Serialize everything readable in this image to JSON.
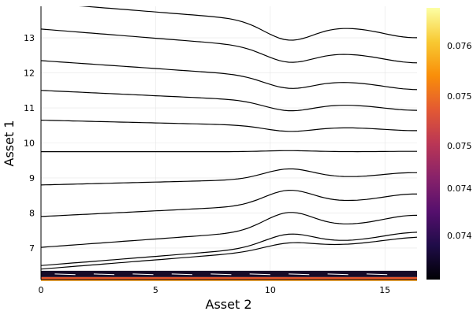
{
  "chart_data": {
    "type": "contour",
    "xlabel": "Asset 2",
    "ylabel": "Asset 1",
    "xlim": [
      0,
      16.4
    ],
    "ylim": [
      6.1,
      13.9
    ],
    "x_ticks": [
      0,
      5,
      10,
      15
    ],
    "y_ticks": [
      7,
      8,
      9,
      10,
      11,
      12,
      13
    ],
    "grid": true,
    "legend": "none",
    "contour_color": "#000000",
    "contour_levels": [
      {
        "left": 6.4,
        "bump": 0.18
      },
      {
        "left": 6.5,
        "bump": 0.33
      },
      {
        "left": 7.02,
        "bump": 0.48
      },
      {
        "left": 7.9,
        "bump": 0.4
      },
      {
        "left": 8.8,
        "bump": 0.28
      },
      {
        "left": 9.75,
        "bump": 0.03
      },
      {
        "left": 10.65,
        "bump": -0.15
      },
      {
        "left": 11.5,
        "bump": -0.25
      },
      {
        "left": 12.35,
        "bump": -0.3
      },
      {
        "left": 13.25,
        "bump": -0.38
      },
      {
        "left": 14.0,
        "bump": -0.5
      }
    ],
    "colorbar": {
      "tick_labels": [
        "0.076",
        "0.075",
        "0.075",
        "0.074",
        "0.074"
      ],
      "colors": [
        "#000004",
        "#1f0c48",
        "#550f6d",
        "#88226a",
        "#ba3655",
        "#e35933",
        "#f98e09",
        "#f8c932",
        "#fcffa4"
      ]
    }
  }
}
